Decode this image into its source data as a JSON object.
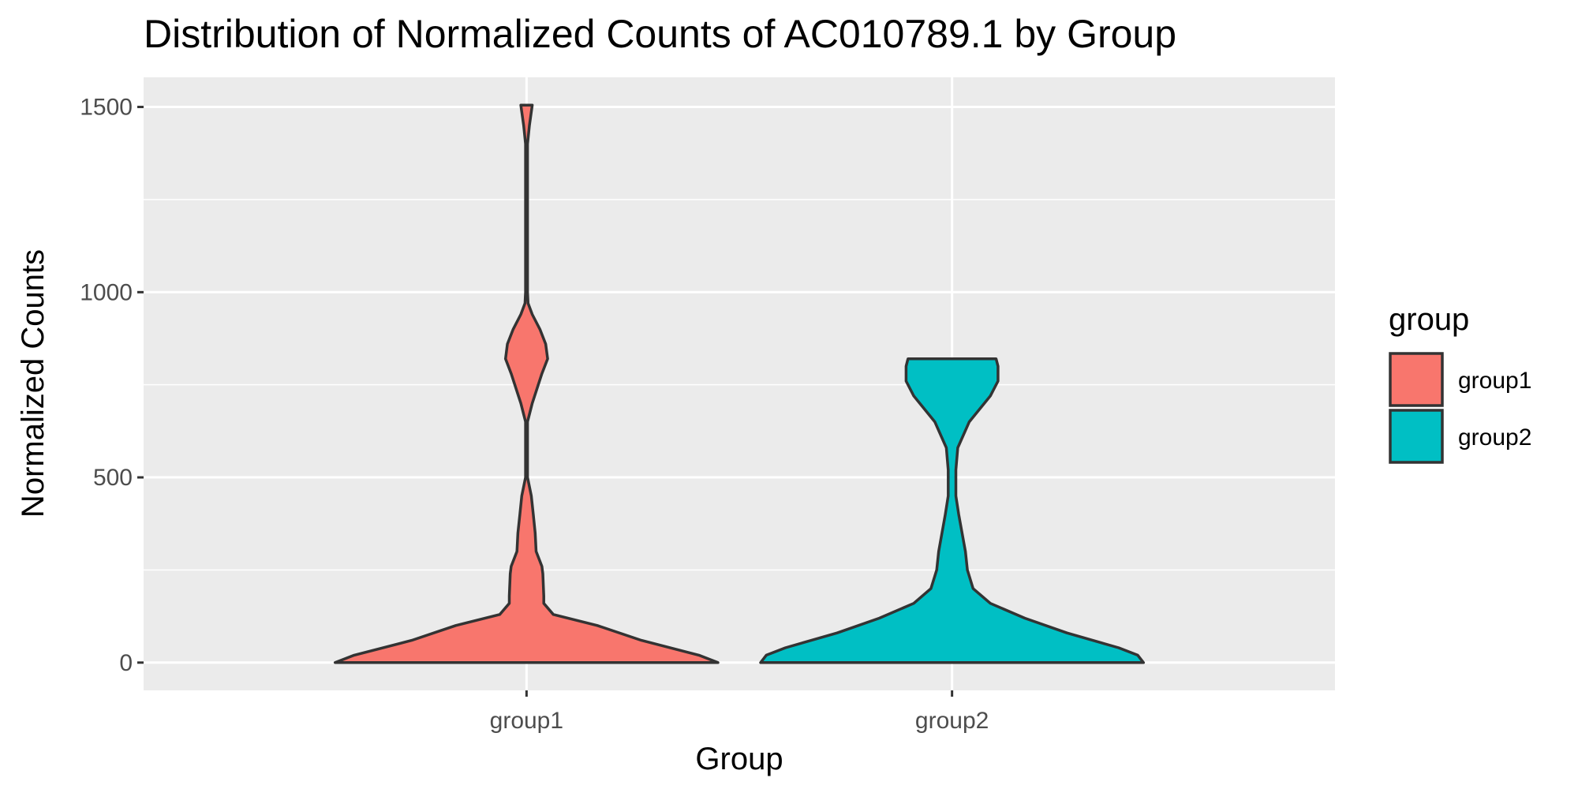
{
  "chart_data": {
    "type": "violin",
    "title": "Distribution of Normalized Counts of AC010789.1 by Group",
    "xlabel": "Group",
    "ylabel": "Normalized Counts",
    "ylim": [
      -75,
      1580
    ],
    "yticks": [
      0,
      500,
      1000,
      1500
    ],
    "grid": true,
    "legend": {
      "title": "group",
      "placement": "right"
    },
    "categories": [
      "group1",
      "group2"
    ],
    "series": [
      {
        "name": "group1",
        "color": "#F8766D",
        "y_range": [
          0,
          1505
        ],
        "density_profile": [
          [
            0,
            1.0
          ],
          [
            20,
            0.9
          ],
          [
            60,
            0.6
          ],
          [
            100,
            0.37
          ],
          [
            130,
            0.14
          ],
          [
            160,
            0.09
          ],
          [
            180,
            0.09
          ],
          [
            240,
            0.085
          ],
          [
            260,
            0.08
          ],
          [
            300,
            0.05
          ],
          [
            350,
            0.045
          ],
          [
            400,
            0.035
          ],
          [
            450,
            0.025
          ],
          [
            500,
            0.005
          ],
          [
            600,
            0.005
          ],
          [
            650,
            0.005
          ],
          [
            700,
            0.03
          ],
          [
            780,
            0.08
          ],
          [
            820,
            0.11
          ],
          [
            860,
            0.1
          ],
          [
            900,
            0.07
          ],
          [
            940,
            0.03
          ],
          [
            970,
            0.008
          ],
          [
            1000,
            0.005
          ],
          [
            1200,
            0.005
          ],
          [
            1400,
            0.005
          ],
          [
            1450,
            0.015
          ],
          [
            1505,
            0.03
          ]
        ]
      },
      {
        "name": "group2",
        "color": "#00BFC4",
        "y_range": [
          0,
          820
        ],
        "density_profile": [
          [
            0,
            1.0
          ],
          [
            20,
            0.97
          ],
          [
            40,
            0.87
          ],
          [
            80,
            0.6
          ],
          [
            120,
            0.38
          ],
          [
            160,
            0.2
          ],
          [
            200,
            0.11
          ],
          [
            250,
            0.08
          ],
          [
            300,
            0.07
          ],
          [
            400,
            0.035
          ],
          [
            450,
            0.02
          ],
          [
            520,
            0.02
          ],
          [
            580,
            0.03
          ],
          [
            650,
            0.09
          ],
          [
            720,
            0.2
          ],
          [
            760,
            0.24
          ],
          [
            800,
            0.24
          ],
          [
            820,
            0.23
          ]
        ]
      }
    ]
  }
}
